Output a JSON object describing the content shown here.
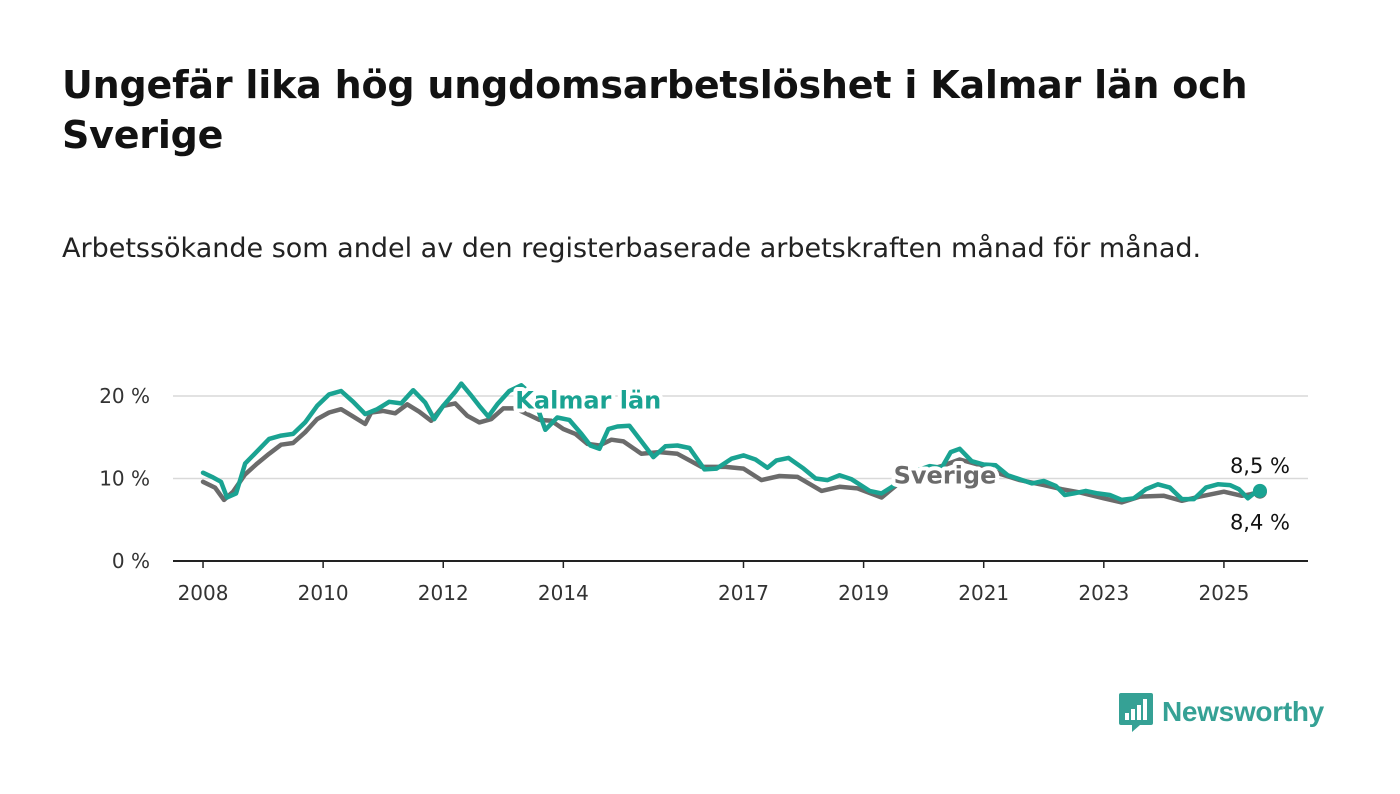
{
  "title": "Ungefär lika hög ungdomsarbetslöshet i Kalmar län och Sverige",
  "subtitle": "Arbetssökande som andel av den registerbaserade arbetskraften månad för månad.",
  "brand": {
    "name": "Newsworthy",
    "color": "#35a195"
  },
  "chart_data": {
    "type": "line",
    "title": "Ungefär lika hög ungdomsarbetslöshet i Kalmar län och Sverige",
    "subtitle": "Arbetssökande som andel av den registerbaserade arbetskraften månad för månad.",
    "xlabel": "",
    "ylabel": "",
    "x_range": [
      2007.5,
      2026.4
    ],
    "ylim": [
      0,
      20
    ],
    "yticks": [
      0,
      10,
      20
    ],
    "ytick_labels": [
      "0 %",
      "10 %",
      "20 %"
    ],
    "xticks": [
      2008,
      2010,
      2012,
      2014,
      2017,
      2019,
      2021,
      2023,
      2025
    ],
    "xtick_labels": [
      "2008",
      "2010",
      "2012",
      "2014",
      "2017",
      "2019",
      "2021",
      "2023",
      "2025"
    ],
    "grid": "horizontal",
    "legend": "direct labels",
    "series": [
      {
        "name": "Sverige",
        "color": "#6b6b6b",
        "end_label": "8,4 %",
        "points": [
          [
            2008.0,
            9.6
          ],
          [
            2008.2,
            8.9
          ],
          [
            2008.35,
            7.4
          ],
          [
            2008.5,
            8.4
          ],
          [
            2008.7,
            10.5
          ],
          [
            2008.9,
            11.8
          ],
          [
            2009.1,
            13.0
          ],
          [
            2009.3,
            14.1
          ],
          [
            2009.5,
            14.3
          ],
          [
            2009.7,
            15.6
          ],
          [
            2009.9,
            17.2
          ],
          [
            2010.1,
            18.0
          ],
          [
            2010.3,
            18.4
          ],
          [
            2010.5,
            17.5
          ],
          [
            2010.7,
            16.6
          ],
          [
            2010.8,
            18.0
          ],
          [
            2011.0,
            18.2
          ],
          [
            2011.2,
            17.9
          ],
          [
            2011.4,
            19.0
          ],
          [
            2011.6,
            18.1
          ],
          [
            2011.8,
            17.0
          ],
          [
            2012.0,
            18.8
          ],
          [
            2012.2,
            19.1
          ],
          [
            2012.4,
            17.6
          ],
          [
            2012.6,
            16.8
          ],
          [
            2012.8,
            17.2
          ],
          [
            2013.0,
            18.5
          ],
          [
            2013.2,
            18.5
          ],
          [
            2013.4,
            17.8
          ],
          [
            2013.6,
            17.1
          ],
          [
            2013.8,
            17.0
          ],
          [
            2014.0,
            16.0
          ],
          [
            2014.2,
            15.4
          ],
          [
            2014.4,
            14.2
          ],
          [
            2014.6,
            14.0
          ],
          [
            2014.8,
            14.7
          ],
          [
            2015.0,
            14.5
          ],
          [
            2015.3,
            13.0
          ],
          [
            2015.6,
            13.2
          ],
          [
            2015.9,
            13.0
          ],
          [
            2016.3,
            11.4
          ],
          [
            2016.7,
            11.4
          ],
          [
            2017.0,
            11.2
          ],
          [
            2017.3,
            9.8
          ],
          [
            2017.6,
            10.3
          ],
          [
            2017.9,
            10.2
          ],
          [
            2018.3,
            8.5
          ],
          [
            2018.6,
            9.0
          ],
          [
            2018.9,
            8.8
          ],
          [
            2019.3,
            7.7
          ],
          [
            2019.6,
            9.5
          ],
          [
            2020.0,
            10.9
          ],
          [
            2020.3,
            11.5
          ],
          [
            2020.6,
            12.3
          ],
          [
            2021.0,
            11.5
          ],
          [
            2021.3,
            10.5
          ],
          [
            2021.6,
            9.8
          ],
          [
            2022.0,
            9.2
          ],
          [
            2022.3,
            8.7
          ],
          [
            2022.6,
            8.3
          ],
          [
            2023.0,
            7.6
          ],
          [
            2023.3,
            7.1
          ],
          [
            2023.6,
            7.8
          ],
          [
            2024.0,
            7.9
          ],
          [
            2024.3,
            7.3
          ],
          [
            2024.6,
            7.8
          ],
          [
            2025.0,
            8.4
          ],
          [
            2025.3,
            7.9
          ],
          [
            2025.45,
            8.1
          ],
          [
            2025.6,
            8.4
          ]
        ]
      },
      {
        "name": "Kalmar län",
        "color": "#1aa392",
        "end_label": "8,5 %",
        "points": [
          [
            2008.0,
            10.7
          ],
          [
            2008.15,
            10.2
          ],
          [
            2008.3,
            9.6
          ],
          [
            2008.4,
            7.7
          ],
          [
            2008.55,
            8.2
          ],
          [
            2008.7,
            11.8
          ],
          [
            2008.9,
            13.3
          ],
          [
            2009.1,
            14.8
          ],
          [
            2009.3,
            15.2
          ],
          [
            2009.5,
            15.4
          ],
          [
            2009.7,
            16.8
          ],
          [
            2009.9,
            18.8
          ],
          [
            2010.1,
            20.2
          ],
          [
            2010.3,
            20.6
          ],
          [
            2010.5,
            19.3
          ],
          [
            2010.7,
            17.8
          ],
          [
            2010.9,
            18.4
          ],
          [
            2011.1,
            19.3
          ],
          [
            2011.3,
            19.1
          ],
          [
            2011.5,
            20.7
          ],
          [
            2011.7,
            19.2
          ],
          [
            2011.85,
            17.2
          ],
          [
            2012.0,
            18.8
          ],
          [
            2012.2,
            20.5
          ],
          [
            2012.3,
            21.5
          ],
          [
            2012.45,
            20.2
          ],
          [
            2012.6,
            18.8
          ],
          [
            2012.75,
            17.5
          ],
          [
            2012.9,
            19.0
          ],
          [
            2013.1,
            20.6
          ],
          [
            2013.3,
            21.3
          ],
          [
            2013.5,
            20.0
          ],
          [
            2013.7,
            15.9
          ],
          [
            2013.9,
            17.4
          ],
          [
            2014.1,
            17.1
          ],
          [
            2014.3,
            15.4
          ],
          [
            2014.45,
            14.0
          ],
          [
            2014.6,
            13.6
          ],
          [
            2014.75,
            16.0
          ],
          [
            2014.9,
            16.3
          ],
          [
            2015.1,
            16.4
          ],
          [
            2015.3,
            14.5
          ],
          [
            2015.5,
            12.6
          ],
          [
            2015.7,
            13.9
          ],
          [
            2015.9,
            14.0
          ],
          [
            2016.1,
            13.7
          ],
          [
            2016.35,
            11.1
          ],
          [
            2016.55,
            11.2
          ],
          [
            2016.8,
            12.4
          ],
          [
            2017.0,
            12.8
          ],
          [
            2017.2,
            12.3
          ],
          [
            2017.4,
            11.3
          ],
          [
            2017.55,
            12.2
          ],
          [
            2017.75,
            12.5
          ],
          [
            2018.0,
            11.2
          ],
          [
            2018.2,
            10.0
          ],
          [
            2018.4,
            9.8
          ],
          [
            2018.6,
            10.4
          ],
          [
            2018.8,
            9.9
          ],
          [
            2019.1,
            8.5
          ],
          [
            2019.3,
            8.2
          ],
          [
            2019.5,
            9.1
          ],
          [
            2019.7,
            9.9
          ],
          [
            2019.9,
            11.0
          ],
          [
            2020.1,
            11.5
          ],
          [
            2020.3,
            11.3
          ],
          [
            2020.45,
            13.2
          ],
          [
            2020.6,
            13.6
          ],
          [
            2020.8,
            12.1
          ],
          [
            2021.0,
            11.7
          ],
          [
            2021.2,
            11.6
          ],
          [
            2021.4,
            10.4
          ],
          [
            2021.6,
            9.9
          ],
          [
            2021.8,
            9.4
          ],
          [
            2022.0,
            9.7
          ],
          [
            2022.2,
            9.1
          ],
          [
            2022.35,
            8.0
          ],
          [
            2022.5,
            8.2
          ],
          [
            2022.7,
            8.5
          ],
          [
            2022.9,
            8.2
          ],
          [
            2023.1,
            8.0
          ],
          [
            2023.3,
            7.4
          ],
          [
            2023.5,
            7.6
          ],
          [
            2023.7,
            8.7
          ],
          [
            2023.9,
            9.3
          ],
          [
            2024.1,
            8.9
          ],
          [
            2024.3,
            7.5
          ],
          [
            2024.5,
            7.5
          ],
          [
            2024.7,
            8.9
          ],
          [
            2024.9,
            9.3
          ],
          [
            2025.1,
            9.2
          ],
          [
            2025.25,
            8.7
          ],
          [
            2025.4,
            7.6
          ],
          [
            2025.5,
            8.2
          ],
          [
            2025.6,
            8.5
          ]
        ]
      }
    ],
    "direct_labels": [
      {
        "series": "Kalmar län",
        "text": "Kalmar län",
        "x": 2013.2,
        "y": 18.5
      },
      {
        "series": "Sverige",
        "text": "Sverige",
        "x": 2019.5,
        "y": 9.4
      }
    ]
  }
}
